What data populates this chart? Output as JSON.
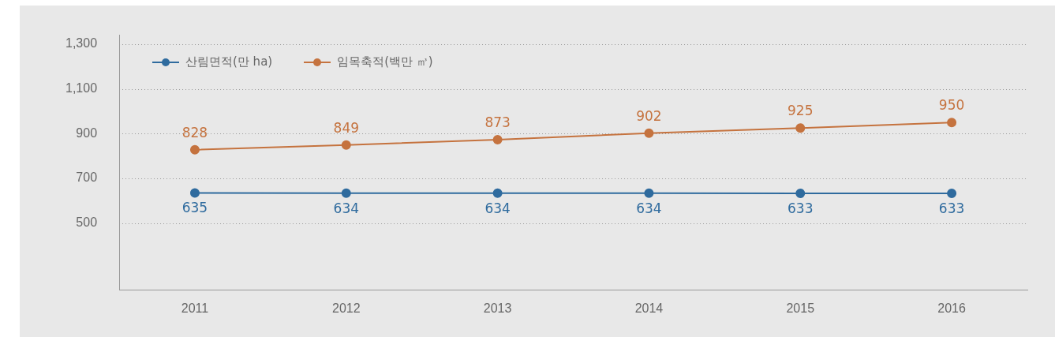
{
  "chart_data": {
    "type": "line",
    "categories": [
      "2011",
      "2012",
      "2013",
      "2014",
      "2015",
      "2016"
    ],
    "series": [
      {
        "name": "산림면적(만 ha)",
        "color": "#2f6b9e",
        "values": [
          635,
          634,
          634,
          634,
          633,
          633
        ]
      },
      {
        "name": "임목축적(백만 ㎥)",
        "color": "#c5733f",
        "values": [
          828,
          849,
          873,
          902,
          925,
          950
        ]
      }
    ],
    "ylim": [
      200,
      1340
    ],
    "yticks": [
      500,
      700,
      900,
      {
        "value": 1100,
        "label": "1,100"
      },
      {
        "value": 1300,
        "label": "1,300"
      }
    ],
    "grid": "y",
    "legend": "top left",
    "marker": "circle",
    "line_style": "solid",
    "data_labels": true
  }
}
